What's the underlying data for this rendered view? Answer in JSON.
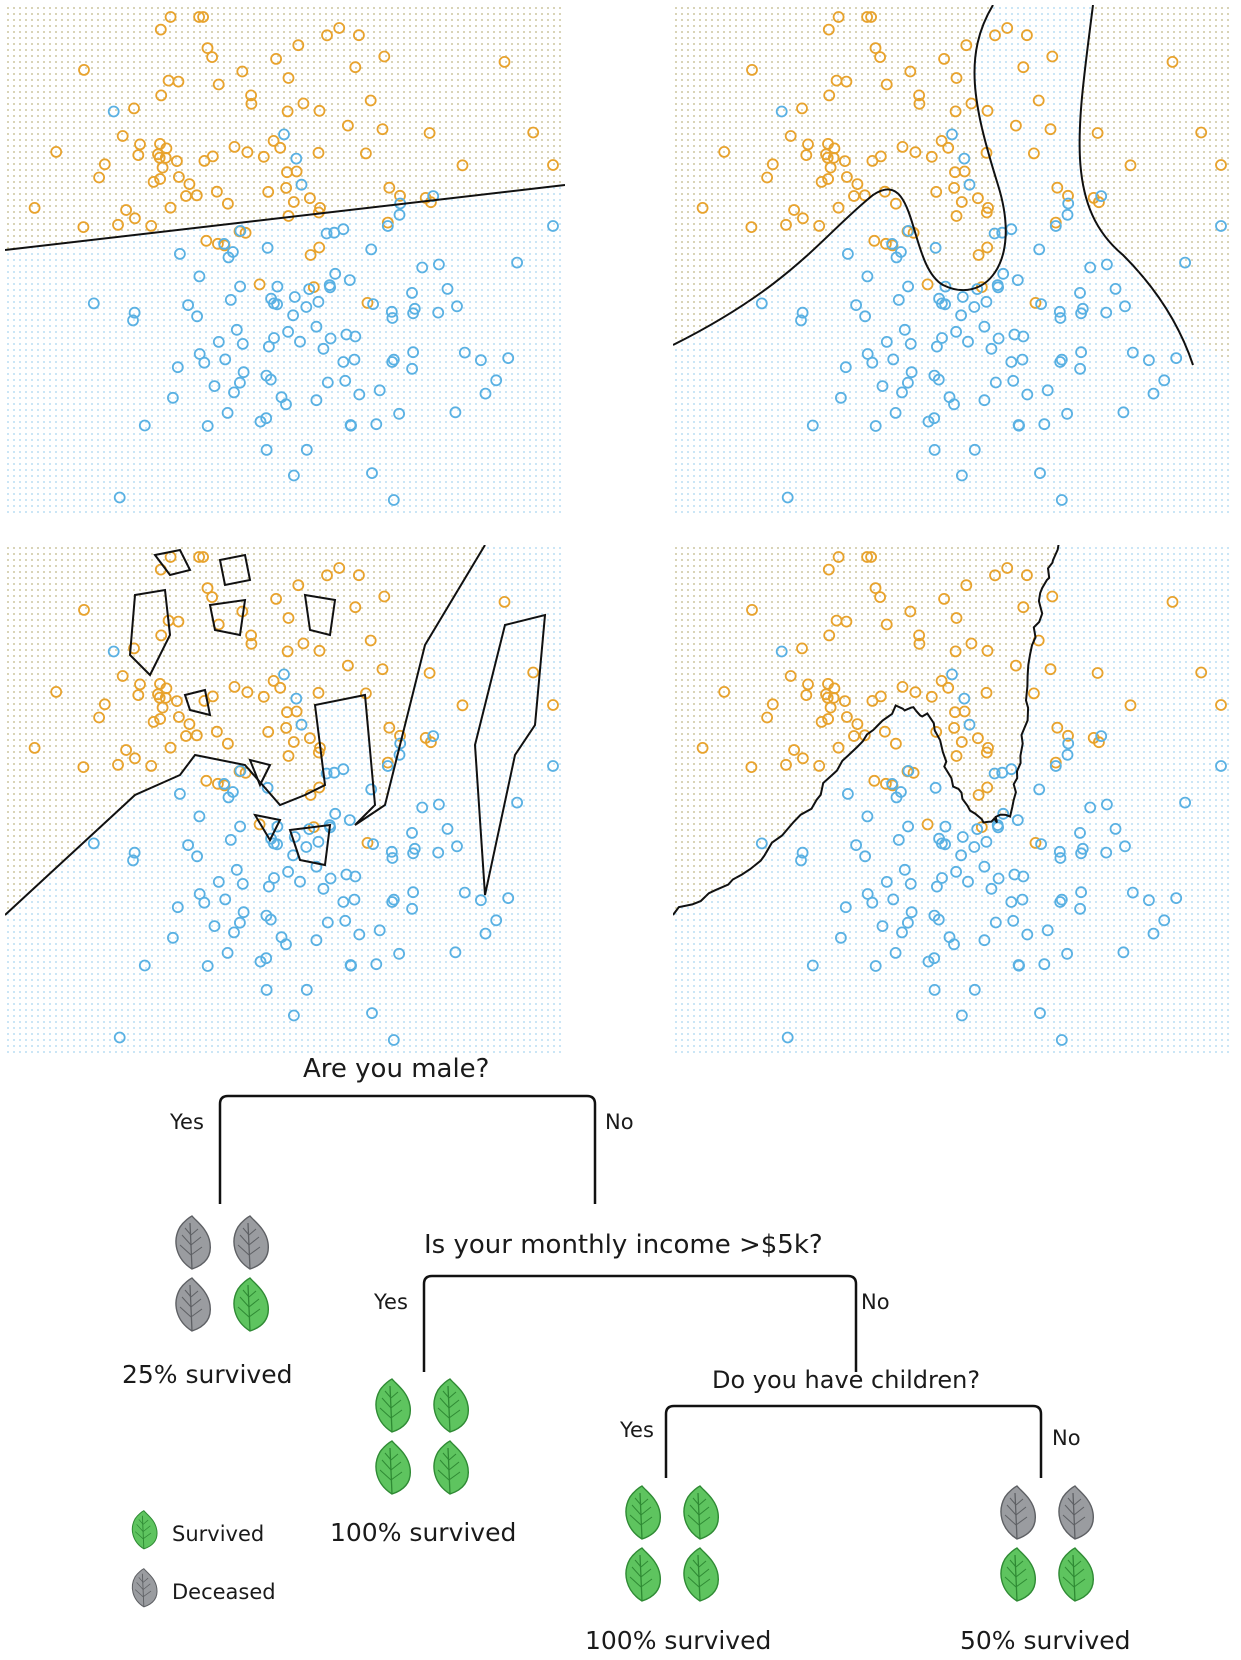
{
  "colors": {
    "class_orange": "#e8a32d",
    "class_blue": "#5ab1e3",
    "boundary": "#111111",
    "survived_leaf": "#5ec45f",
    "deceased_leaf": "#9a9ca0"
  },
  "chart_data": [
    {
      "type": "scatter",
      "model": "linear",
      "grid": false,
      "legend": "none"
    },
    {
      "type": "scatter",
      "model": "smooth-nonlinear",
      "grid": false,
      "legend": "none"
    },
    {
      "type": "scatter",
      "model": "overfit-polygons",
      "grid": false,
      "legend": "none"
    },
    {
      "type": "scatter",
      "model": "jagged-nonlinear",
      "grid": false,
      "legend": "none"
    }
  ],
  "tree": {
    "q1": "Are you male?",
    "q2": "Is your monthly income >$5k?",
    "q3": "Do you have children?",
    "yes": "Yes",
    "no": "No",
    "r1": "25% survived",
    "r2": "100% survived",
    "r3": "100% survived",
    "r4": "50% survived",
    "leaves": {
      "r1": [
        "deceased",
        "deceased",
        "deceased",
        "survived"
      ],
      "r2": [
        "survived",
        "survived",
        "survived",
        "survived"
      ],
      "r3": [
        "survived",
        "survived",
        "survived",
        "survived"
      ],
      "r4": [
        "deceased",
        "deceased",
        "survived",
        "survived"
      ]
    },
    "legend": {
      "survived": "Survived",
      "deceased": "Deceased"
    }
  }
}
